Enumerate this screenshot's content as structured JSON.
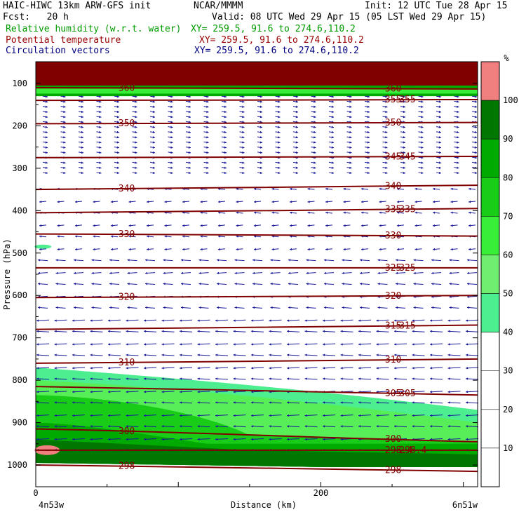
{
  "header": {
    "title": "HAIC-HIWC 13km ARW-GFS init",
    "org": "NCAR/MMMM",
    "init": "Init: 12 UTC Tue 28 Apr 15",
    "fcst": "Fcst:   20 h",
    "valid": "Valid: 08 UTC Wed 29 Apr 15 (05 LST Wed 29 Apr 15)",
    "fields": [
      {
        "name": "Relative humidity (w.r.t. water)",
        "xy": "XY= 259.5, 91.6 to 274.6,110.2",
        "color": "#009900"
      },
      {
        "name": "Potential temperature",
        "xy": "XY= 259.5, 91.6 to 274.6,110.2",
        "color": "#990000"
      },
      {
        "name": "Circulation vectors",
        "xy": "XY= 259.5, 91.6 to 274.6,110.2",
        "color": "#000080"
      }
    ]
  },
  "chart_data": {
    "type": "heatmap",
    "xlabel": "Distance (km)",
    "ylabel": "Pressure (hPa)",
    "xlim": [
      0,
      310
    ],
    "ylim": [
      1050,
      50
    ],
    "x_ticks": [
      "0",
      "200"
    ],
    "y_ticks": [
      "100",
      "200",
      "300",
      "400",
      "500",
      "600",
      "700",
      "800",
      "900",
      "1000"
    ],
    "x_ends": [
      "4n53w",
      "6n51w"
    ],
    "colorbar": {
      "unit": "%",
      "levels": [
        "10",
        "20",
        "30",
        "40",
        "50",
        "60",
        "70",
        "80",
        "90",
        "100"
      ],
      "colors": [
        "#ffffff",
        "#ffffff",
        "#ffffff",
        "#ffffff",
        "#ffffff",
        "#4cee90",
        "#70ee70",
        "#38ee38",
        "#18cc18",
        "#00aa00",
        "#007700",
        "#f08080"
      ]
    },
    "theta_contours": [
      {
        "label": "360",
        "p": [
          110,
          113
        ]
      },
      {
        "label": "355",
        "p": [
          140,
          138
        ]
      },
      {
        "label": "350",
        "p": [
          195,
          192
        ]
      },
      {
        "label": "345",
        "p": [
          275,
          272
        ]
      },
      {
        "label": "340",
        "p": [
          350,
          340
        ]
      },
      {
        "label": "335",
        "p": [
          405,
          395
        ]
      },
      {
        "label": "330",
        "p": [
          455,
          460
        ]
      },
      {
        "label": "325",
        "p": [
          535,
          535
        ]
      },
      {
        "label": "320",
        "p": [
          605,
          600
        ]
      },
      {
        "label": "315",
        "p": [
          680,
          670
        ]
      },
      {
        "label": "310",
        "p": [
          760,
          750
        ]
      },
      {
        "label": "305",
        "p": [
          815,
          835
        ]
      },
      {
        "label": "300",
        "p": [
          915,
          945
        ]
      },
      {
        "label": "298.4",
        "p": [
          965,
          965
        ]
      },
      {
        "label": "298",
        "p": [
          1000,
          1015
        ]
      }
    ],
    "moist_layer": {
      "p_top_left": 770,
      "p_top_right": 870,
      "p_bottom": 1000
    },
    "wind": {
      "upper": "weak westerly/eastward",
      "middle": "easterly",
      "lower": "easterly"
    }
  }
}
